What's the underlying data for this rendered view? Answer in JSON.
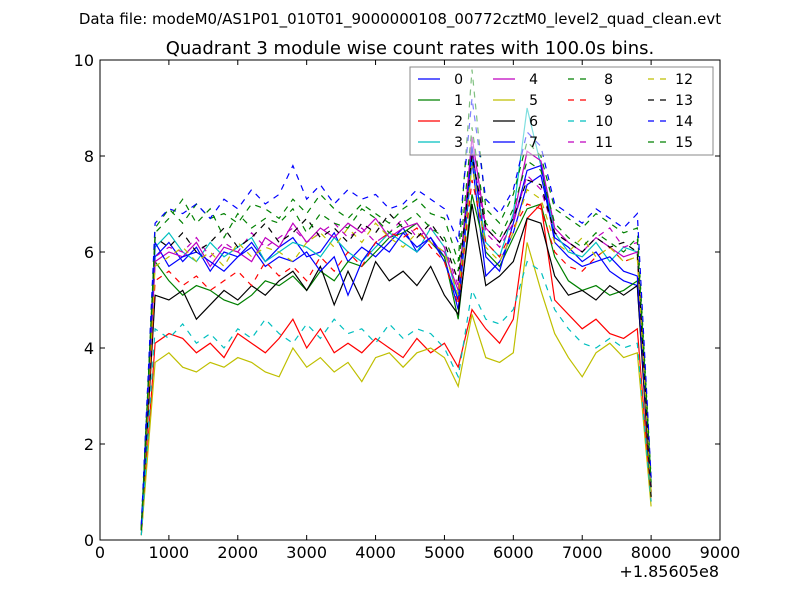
{
  "chart_data": {
    "type": "line",
    "suptitle": "Data file: modeM0/AS1P01_010T01_9000000108_00772cztM0_level2_quad_clean.evt",
    "title": "Quadrant 3 module wise count rates with 100.0s bins.",
    "xlabel": "",
    "ylabel": "",
    "xlim": [
      0,
      9000
    ],
    "ylim": [
      0,
      10
    ],
    "x_offset_label": "+1.85605e8",
    "xticks": [
      0,
      1000,
      2000,
      3000,
      4000,
      5000,
      6000,
      7000,
      8000,
      9000
    ],
    "yticks": [
      0,
      2,
      4,
      6,
      8,
      10
    ],
    "legend_position": "top-right",
    "legend_columns": 4,
    "x": [
      600,
      800,
      1000,
      1200,
      1400,
      1600,
      1800,
      2000,
      2200,
      2400,
      2600,
      2800,
      3000,
      3200,
      3400,
      3600,
      3800,
      4000,
      4200,
      4400,
      4600,
      4800,
      5000,
      5200,
      5400,
      5600,
      5800,
      6000,
      6200,
      6400,
      6600,
      6800,
      7000,
      7200,
      7400,
      7600,
      7800,
      8000
    ],
    "series": [
      {
        "name": "0",
        "color": "#0000ff",
        "dashed": false,
        "values": [
          0.2,
          5.9,
          6.2,
          5.8,
          6.1,
          5.6,
          6.0,
          5.9,
          6.2,
          5.8,
          6.1,
          6.3,
          5.9,
          6.0,
          6.4,
          5.8,
          6.1,
          5.9,
          6.2,
          6.5,
          6.0,
          6.3,
          5.9,
          4.8,
          7.9,
          5.5,
          5.8,
          6.4,
          7.4,
          7.6,
          6.3,
          6.1,
          5.8,
          6.0,
          5.6,
          5.4,
          5.3,
          1.0
        ]
      },
      {
        "name": "1",
        "color": "#008000",
        "dashed": false,
        "values": [
          0.2,
          5.8,
          5.4,
          5.1,
          5.3,
          5.2,
          5.0,
          4.9,
          5.1,
          5.4,
          5.3,
          5.5,
          5.2,
          5.6,
          5.4,
          5.8,
          5.7,
          6.0,
          6.3,
          6.4,
          6.6,
          6.2,
          5.9,
          4.6,
          7.2,
          6.0,
          5.7,
          6.3,
          6.9,
          7.0,
          5.9,
          5.4,
          5.2,
          5.3,
          5.1,
          5.2,
          5.4,
          0.9
        ]
      },
      {
        "name": "2",
        "color": "#ff0000",
        "dashed": false,
        "values": [
          0.1,
          4.1,
          4.3,
          4.2,
          3.9,
          4.1,
          3.8,
          4.3,
          4.1,
          3.9,
          4.2,
          4.6,
          4.0,
          4.4,
          3.9,
          4.1,
          3.9,
          4.2,
          4.0,
          3.8,
          4.2,
          3.9,
          4.1,
          3.6,
          4.8,
          4.4,
          4.1,
          4.6,
          6.7,
          7.0,
          5.0,
          4.7,
          4.4,
          4.6,
          4.3,
          4.2,
          4.4,
          0.8
        ]
      },
      {
        "name": "3",
        "color": "#00bfbf",
        "dashed": false,
        "values": [
          0.3,
          6.1,
          6.4,
          6.0,
          5.8,
          6.2,
          5.9,
          6.1,
          6.3,
          5.8,
          6.0,
          6.2,
          6.1,
          5.9,
          6.3,
          6.0,
          5.8,
          6.1,
          6.4,
          6.2,
          6.0,
          6.5,
          6.1,
          5.0,
          8.0,
          6.2,
          5.9,
          6.8,
          9.0,
          7.8,
          6.4,
          6.0,
          5.9,
          6.2,
          5.8,
          6.1,
          6.0,
          1.2
        ]
      },
      {
        "name": "4",
        "color": "#bf00bf",
        "dashed": false,
        "values": [
          0.2,
          5.8,
          6.0,
          5.9,
          6.2,
          5.7,
          6.1,
          6.0,
          5.8,
          6.3,
          6.1,
          6.6,
          6.2,
          6.5,
          6.3,
          6.6,
          6.4,
          6.7,
          6.3,
          6.5,
          6.6,
          6.2,
          6.0,
          5.2,
          8.4,
          6.5,
          6.2,
          6.7,
          8.1,
          7.9,
          6.5,
          6.2,
          6.0,
          6.3,
          6.1,
          5.9,
          6.0,
          1.0
        ]
      },
      {
        "name": "5",
        "color": "#bfbf00",
        "dashed": false,
        "values": [
          0.1,
          3.7,
          3.9,
          3.6,
          3.5,
          3.7,
          3.6,
          3.8,
          3.7,
          3.5,
          3.4,
          4.0,
          3.6,
          3.8,
          3.5,
          3.7,
          3.3,
          3.8,
          3.9,
          3.6,
          3.9,
          4.0,
          3.8,
          3.2,
          4.7,
          3.8,
          3.7,
          3.9,
          6.2,
          5.2,
          4.3,
          3.8,
          3.4,
          3.9,
          4.1,
          3.8,
          3.9,
          0.7
        ]
      },
      {
        "name": "6",
        "color": "#000000",
        "dashed": false,
        "values": [
          0.2,
          5.1,
          5.0,
          5.2,
          4.6,
          4.9,
          5.2,
          5.0,
          5.3,
          5.1,
          5.4,
          5.6,
          5.2,
          5.7,
          4.9,
          5.6,
          5.0,
          5.8,
          5.4,
          5.6,
          5.3,
          5.7,
          5.1,
          4.7,
          7.0,
          5.3,
          5.5,
          5.8,
          6.7,
          6.6,
          5.5,
          5.1,
          5.2,
          5.0,
          5.3,
          5.1,
          5.3,
          0.9
        ]
      },
      {
        "name": "7",
        "color": "#0000ff",
        "dashed": false,
        "values": [
          0.2,
          6.2,
          5.7,
          5.9,
          6.0,
          5.8,
          5.6,
          5.9,
          6.1,
          5.7,
          5.9,
          5.8,
          6.0,
          5.6,
          5.9,
          5.1,
          5.8,
          6.2,
          6.0,
          6.4,
          6.1,
          6.3,
          5.8,
          5.0,
          8.2,
          5.9,
          5.6,
          6.6,
          7.7,
          7.8,
          6.2,
          5.9,
          5.7,
          5.8,
          5.9,
          5.6,
          5.5,
          1.1
        ]
      },
      {
        "name": "8",
        "color": "#008000",
        "dashed": true,
        "values": [
          0.3,
          6.5,
          6.9,
          6.6,
          7.0,
          6.7,
          6.8,
          6.6,
          7.0,
          6.9,
          6.7,
          7.1,
          6.8,
          7.2,
          6.9,
          6.7,
          7.0,
          6.8,
          6.6,
          6.9,
          7.1,
          6.8,
          6.7,
          5.8,
          9.8,
          6.9,
          6.6,
          7.2,
          8.3,
          8.0,
          6.9,
          6.7,
          6.5,
          6.8,
          6.6,
          6.4,
          6.5,
          1.3
        ]
      },
      {
        "name": "9",
        "color": "#ff0000",
        "dashed": true,
        "values": [
          0.2,
          5.4,
          5.6,
          5.3,
          5.5,
          5.2,
          5.4,
          5.6,
          5.3,
          5.8,
          5.5,
          5.7,
          5.4,
          5.9,
          5.6,
          6.0,
          5.7,
          6.2,
          6.4,
          6.3,
          6.5,
          6.1,
          5.8,
          4.9,
          7.5,
          6.2,
          5.9,
          6.5,
          7.0,
          6.9,
          6.0,
          5.7,
          5.6,
          5.9,
          6.1,
          5.8,
          5.9,
          1.0
        ]
      },
      {
        "name": "10",
        "color": "#00bfbf",
        "dashed": true,
        "values": [
          0.1,
          4.4,
          4.2,
          4.5,
          4.1,
          4.3,
          4.0,
          4.4,
          4.2,
          4.6,
          4.3,
          4.1,
          4.5,
          4.2,
          4.6,
          4.3,
          4.4,
          4.1,
          4.5,
          4.2,
          4.4,
          4.3,
          4.0,
          3.4,
          5.2,
          4.6,
          4.5,
          4.8,
          5.8,
          5.6,
          4.8,
          4.4,
          4.1,
          4.0,
          4.2,
          4.0,
          4.1,
          0.8
        ]
      },
      {
        "name": "11",
        "color": "#bf00bf",
        "dashed": true,
        "values": [
          0.2,
          5.9,
          6.1,
          6.0,
          6.3,
          5.9,
          6.2,
          6.0,
          6.4,
          6.1,
          6.3,
          6.5,
          6.2,
          6.4,
          6.6,
          6.3,
          6.5,
          6.2,
          6.4,
          6.7,
          6.3,
          6.5,
          6.1,
          5.3,
          8.1,
          6.4,
          6.1,
          6.6,
          7.6,
          7.3,
          6.4,
          6.2,
          6.0,
          6.3,
          6.5,
          6.1,
          6.2,
          1.0
        ]
      },
      {
        "name": "12",
        "color": "#bfbf00",
        "dashed": true,
        "values": [
          0.2,
          5.7,
          5.9,
          6.1,
          5.8,
          6.0,
          5.7,
          6.2,
          5.9,
          6.1,
          6.0,
          5.8,
          6.2,
          6.4,
          6.1,
          6.5,
          6.2,
          6.6,
          6.3,
          6.1,
          6.4,
          6.2,
          6.0,
          5.1,
          7.8,
          6.1,
          5.8,
          6.4,
          7.3,
          7.1,
          6.2,
          6.0,
          6.3,
          5.9,
          6.1,
          5.8,
          5.9,
          1.0
        ]
      },
      {
        "name": "13",
        "color": "#000000",
        "dashed": true,
        "values": [
          0.2,
          6.3,
          6.1,
          6.4,
          6.0,
          6.2,
          6.5,
          6.1,
          6.3,
          6.6,
          6.2,
          6.4,
          6.7,
          6.3,
          6.5,
          6.2,
          6.6,
          6.4,
          6.8,
          6.5,
          6.3,
          6.6,
          6.2,
          5.4,
          8.0,
          6.5,
          6.2,
          6.7,
          7.5,
          7.4,
          6.4,
          6.2,
          6.0,
          6.3,
          6.1,
          6.2,
          6.0,
          1.1
        ]
      },
      {
        "name": "14",
        "color": "#0000ff",
        "dashed": true,
        "values": [
          0.3,
          6.6,
          6.9,
          6.8,
          7.0,
          6.7,
          7.1,
          6.9,
          7.3,
          7.0,
          7.2,
          7.8,
          7.1,
          7.4,
          7.0,
          7.3,
          7.1,
          7.2,
          6.9,
          7.0,
          7.3,
          7.1,
          6.9,
          6.2,
          9.2,
          7.1,
          6.8,
          7.3,
          8.5,
          8.2,
          7.0,
          6.8,
          6.6,
          6.9,
          6.7,
          6.5,
          6.8,
          1.3
        ]
      },
      {
        "name": "15",
        "color": "#008000",
        "dashed": true,
        "values": [
          0.2,
          6.4,
          6.7,
          7.1,
          6.6,
          6.9,
          6.3,
          6.8,
          6.5,
          6.7,
          6.6,
          6.9,
          6.4,
          6.8,
          6.6,
          6.5,
          6.9,
          6.7,
          6.4,
          6.6,
          6.8,
          6.5,
          6.3,
          5.6,
          8.6,
          6.6,
          6.3,
          6.9,
          7.9,
          7.7,
          6.6,
          6.3,
          6.1,
          6.4,
          6.2,
          6.0,
          6.3,
          1.2
        ]
      }
    ]
  }
}
